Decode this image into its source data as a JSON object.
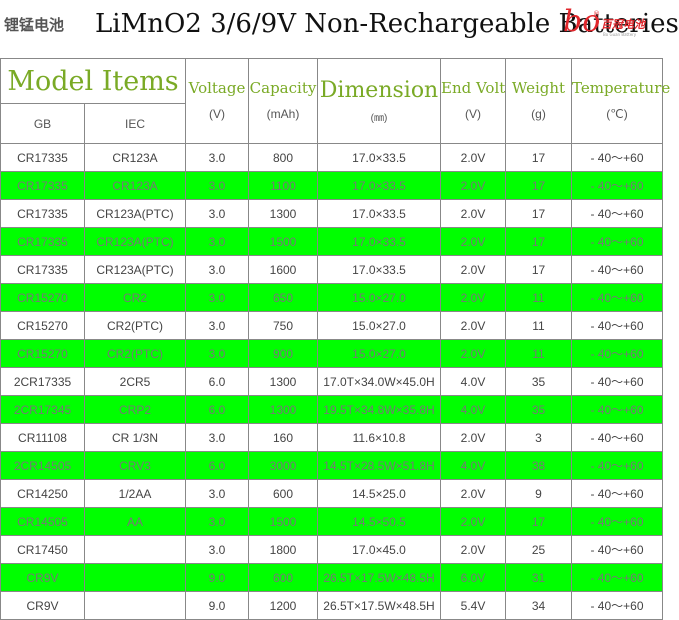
{
  "header": {
    "brand_cn": "锂锰电池",
    "title": "LiMnO2 3/6/9V Non-Rechargeable Batteries",
    "logo": {
      "mark": "bo",
      "reg": "®",
      "cn": "百冠电池",
      "sub": "Bo Guan Battery"
    }
  },
  "table": {
    "headers": {
      "model_items": "Model Items",
      "gb": "GB",
      "iec": "IEC",
      "voltage": "Voltage",
      "voltage_unit": "(V)",
      "capacity": "Capacity",
      "capacity_unit": "(mAh)",
      "dimension": "Dimension",
      "dimension_unit": "(㎜)",
      "end_volt": "End Volt",
      "end_volt_unit": "(V)",
      "weight": "Weight",
      "weight_unit": "(g)",
      "temperature": "Temperature",
      "temperature_unit": "(℃)"
    },
    "rows": [
      {
        "gb": "CR17335",
        "iec": "CR123A",
        "voltage": "3.0",
        "capacity": "800",
        "dimension": "17.0×33.5",
        "end_volt": "2.0V",
        "weight": "17",
        "temperature": "- 40～+60"
      },
      {
        "gb": "CR17335",
        "iec": "CR123A",
        "voltage": "3.0",
        "capacity": "1100",
        "dimension": "17.0×33.5",
        "end_volt": "2.0V",
        "weight": "17",
        "temperature": "- 40～+60"
      },
      {
        "gb": "CR17335",
        "iec": "CR123A(PTC)",
        "voltage": "3.0",
        "capacity": "1300",
        "dimension": "17.0×33.5",
        "end_volt": "2.0V",
        "weight": "17",
        "temperature": "- 40～+60"
      },
      {
        "gb": "CR17335",
        "iec": "CR123A(PTC)",
        "voltage": "3.0",
        "capacity": "1500",
        "dimension": "17.0×33.5",
        "end_volt": "2.0V",
        "weight": "17",
        "temperature": "- 40～+60"
      },
      {
        "gb": "CR17335",
        "iec": "CR123A(PTC)",
        "voltage": "3.0",
        "capacity": "1600",
        "dimension": "17.0×33.5",
        "end_volt": "2.0V",
        "weight": "17",
        "temperature": "- 40～+60"
      },
      {
        "gb": "CR15270",
        "iec": "CR2",
        "voltage": "3.0",
        "capacity": "650",
        "dimension": "15.0×27.0",
        "end_volt": "2.0V",
        "weight": "11",
        "temperature": "- 40～+60"
      },
      {
        "gb": "CR15270",
        "iec": "CR2(PTC)",
        "voltage": "3.0",
        "capacity": "750",
        "dimension": "15.0×27.0",
        "end_volt": "2.0V",
        "weight": "11",
        "temperature": "- 40～+60"
      },
      {
        "gb": "CR15270",
        "iec": "CR2(PTC)",
        "voltage": "3.0",
        "capacity": "900",
        "dimension": "15.0×27.0",
        "end_volt": "2.0V",
        "weight": "11",
        "temperature": "- 40～+60"
      },
      {
        "gb": "2CR17335",
        "iec": "2CR5",
        "voltage": "6.0",
        "capacity": "1300",
        "dimension": "17.0T×34.0W×45.0H",
        "end_volt": "4.0V",
        "weight": "35",
        "temperature": "- 40～+60"
      },
      {
        "gb": "2CR17345",
        "iec": "CRP2",
        "voltage": "6.0",
        "capacity": "1300",
        "dimension": "19.5T×34.8W×35.8H",
        "end_volt": "4.0V",
        "weight": "35",
        "temperature": "- 40～+60"
      },
      {
        "gb": "CR11108",
        "iec": "CR 1/3N",
        "voltage": "3.0",
        "capacity": "160",
        "dimension": "11.6×10.8",
        "end_volt": "2.0V",
        "weight": "3",
        "temperature": "- 40～+60"
      },
      {
        "gb": "2CR14505",
        "iec": "CRV3",
        "voltage": "6.0",
        "capacity": "3000",
        "dimension": "14.5T×28.5W×51.8H",
        "end_volt": "4.0V",
        "weight": "38",
        "temperature": "- 40～+60"
      },
      {
        "gb": "CR14250",
        "iec": "1/2AA",
        "voltage": "3.0",
        "capacity": "600",
        "dimension": "14.5×25.0",
        "end_volt": "2.0V",
        "weight": "9",
        "temperature": "- 40～+60"
      },
      {
        "gb": "CR14505",
        "iec": "AA",
        "voltage": "3.0",
        "capacity": "1500",
        "dimension": "14.5×50.5",
        "end_volt": "2.0V",
        "weight": "17",
        "temperature": "- 40～+60"
      },
      {
        "gb": "CR17450",
        "iec": "",
        "voltage": "3.0",
        "capacity": "1800",
        "dimension": "17.0×45.0",
        "end_volt": "2.0V",
        "weight": "25",
        "temperature": "- 40～+60"
      },
      {
        "gb": "CR9V",
        "iec": "",
        "voltage": "9.0",
        "capacity": "600",
        "dimension": "26.5T×17.5W×48.5H",
        "end_volt": "6.0V",
        "weight": "31",
        "temperature": "- 40～+60"
      },
      {
        "gb": "CR9V",
        "iec": "",
        "voltage": "9.0",
        "capacity": "1200",
        "dimension": "26.5T×17.5W×48.5H",
        "end_volt": "5.4V",
        "weight": "34",
        "temperature": "- 40～+60"
      }
    ]
  },
  "colors": {
    "header_green": "#7aaa26",
    "row_highlight": "#00ff00",
    "logo_red": "#e0272c"
  }
}
